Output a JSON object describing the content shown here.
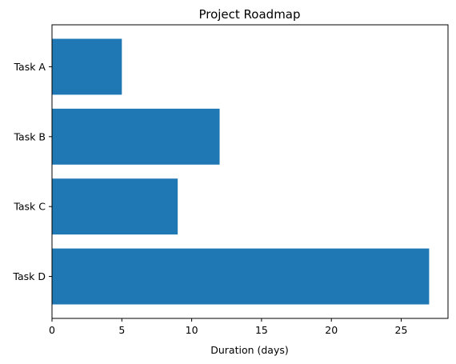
{
  "chart_data": {
    "type": "bar",
    "orientation": "horizontal",
    "title": "Project Roadmap",
    "xlabel": "Duration (days)",
    "ylabel": "",
    "categories": [
      "Task A",
      "Task B",
      "Task C",
      "Task D"
    ],
    "values": [
      5,
      12,
      9,
      27
    ],
    "xlim": [
      0,
      28.35
    ],
    "xticks": [
      0,
      5,
      10,
      15,
      20,
      25
    ],
    "grid": false,
    "bar_color": "#1f77b4"
  }
}
